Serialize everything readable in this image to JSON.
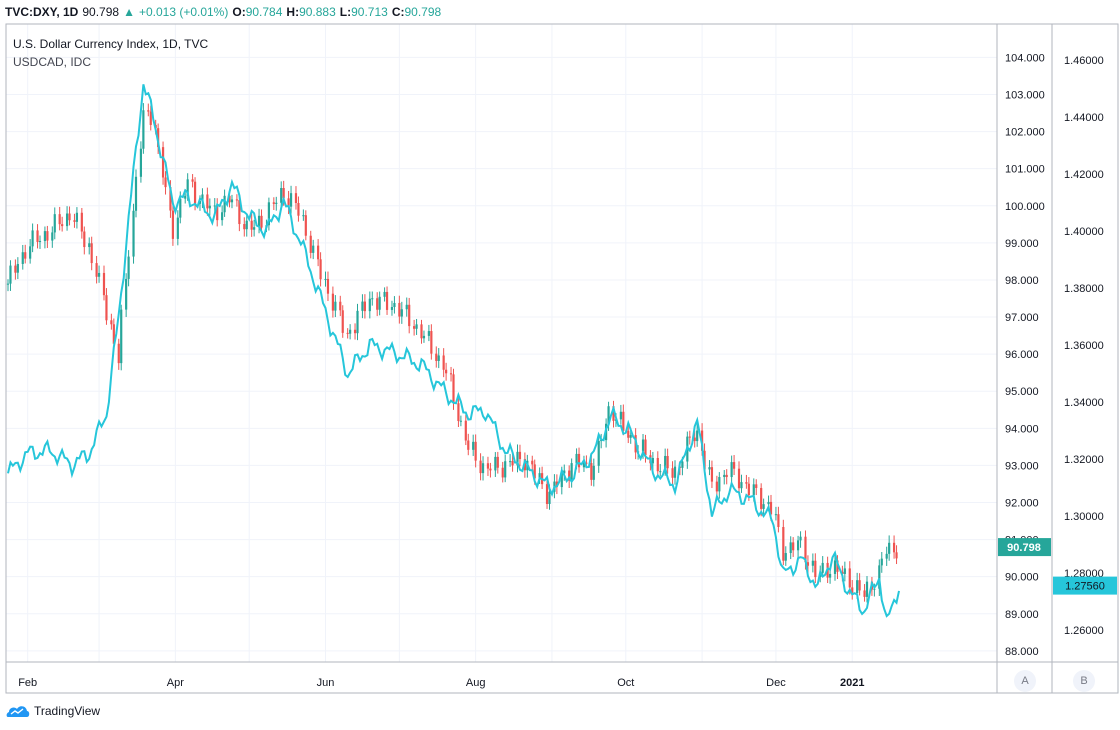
{
  "header": {
    "symbol": "TVC:DXY, 1D",
    "last": "90.798",
    "change": "+0.013 (+0.01%)",
    "o_label": "O:",
    "o_value": "90.784",
    "h_label": "H:",
    "h_value": "90.883",
    "l_label": "L:",
    "l_value": "90.713",
    "c_label": "C:",
    "c_value": "90.798"
  },
  "legend": {
    "main_series": "U.S. Dollar Currency Index, 1D, TVC",
    "compare_series": "USDCAD, IDC"
  },
  "footer": {
    "brand": "TradingView"
  },
  "scale_buttons": [
    "A",
    "B"
  ],
  "chart_data": {
    "type": "line",
    "x": [
      "2020-01-24",
      "2020-02-01",
      "2020-02-10",
      "2020-02-19",
      "2020-02-26",
      "2020-03-04",
      "2020-03-09",
      "2020-03-13",
      "2020-03-19",
      "2020-03-23",
      "2020-03-31",
      "2020-04-06",
      "2020-04-17",
      "2020-04-24",
      "2020-05-01",
      "2020-05-08",
      "2020-05-15",
      "2020-05-22",
      "2020-05-29",
      "2020-06-10",
      "2020-06-19",
      "2020-06-30",
      "2020-07-10",
      "2020-07-20",
      "2020-07-29",
      "2020-08-05",
      "2020-08-13",
      "2020-08-21",
      "2020-08-31",
      "2020-09-10",
      "2020-09-18",
      "2020-09-25",
      "2020-10-02",
      "2020-10-12",
      "2020-10-21",
      "2020-10-30",
      "2020-11-05",
      "2020-11-12",
      "2020-11-20",
      "2020-11-30",
      "2020-12-04",
      "2020-12-11",
      "2020-12-18",
      "2020-12-24",
      "2020-12-31",
      "2021-01-06",
      "2021-01-12",
      "2021-01-15",
      "2021-01-20"
    ],
    "series": [
      {
        "name": "U.S. Dollar Currency Index, 1D, TVC",
        "axis": "right-inner",
        "style": "candles",
        "values": [
          97.9,
          98.9,
          99.3,
          99.8,
          98.9,
          97.3,
          95.9,
          98.6,
          102.3,
          102.5,
          99.3,
          100.6,
          99.8,
          100.2,
          99.3,
          99.7,
          100.4,
          99.8,
          98.4,
          96.5,
          97.5,
          97.3,
          96.6,
          95.6,
          93.5,
          92.9,
          93.0,
          93.2,
          92.2,
          93.1,
          92.9,
          94.6,
          93.8,
          93.1,
          92.8,
          94.0,
          92.4,
          92.9,
          92.4,
          91.8,
          90.7,
          90.9,
          90.0,
          90.3,
          89.9,
          89.5,
          90.1,
          90.7,
          90.798
        ],
        "color_up": "#26a69a",
        "color_down": "#ef5350"
      },
      {
        "name": "USDCAD, IDC",
        "axis": "right-outer",
        "style": "line",
        "values": [
          1.315,
          1.322,
          1.323,
          1.318,
          1.322,
          1.336,
          1.37,
          1.404,
          1.452,
          1.44,
          1.41,
          1.412,
          1.405,
          1.416,
          1.405,
          1.4,
          1.41,
          1.396,
          1.379,
          1.35,
          1.36,
          1.357,
          1.353,
          1.343,
          1.336,
          1.337,
          1.323,
          1.317,
          1.31,
          1.315,
          1.322,
          1.335,
          1.33,
          1.316,
          1.311,
          1.333,
          1.301,
          1.309,
          1.306,
          1.298,
          1.279,
          1.285,
          1.275,
          1.286,
          1.273,
          1.267,
          1.279,
          1.262,
          1.2756
        ],
        "color": "#26c6da"
      }
    ],
    "x_ticks": [
      "Feb",
      "Apr",
      "Jun",
      "Aug",
      "Oct",
      "Dec",
      "2021"
    ],
    "y_ticks_inner": [
      "104.000",
      "103.000",
      "102.000",
      "101.000",
      "100.000",
      "99.000",
      "98.000",
      "97.000",
      "96.000",
      "95.000",
      "94.000",
      "93.000",
      "92.000",
      "91.000",
      "90.000",
      "89.000",
      "88.000"
    ],
    "y_ticks_outer": [
      "1.46000",
      "1.44000",
      "1.42000",
      "1.40000",
      "1.38000",
      "1.36000",
      "1.34000",
      "1.32000",
      "1.30000",
      "1.28000",
      "1.26000"
    ],
    "ylim_inner": [
      87.7,
      104.9
    ],
    "ylim_outer": [
      1.2488,
      1.4726
    ],
    "last_label_inner": "90.798",
    "last_label_outer": "1.27560",
    "last_color_inner": "#26a69a",
    "last_color_outer": "#26c6da",
    "grid": true
  }
}
